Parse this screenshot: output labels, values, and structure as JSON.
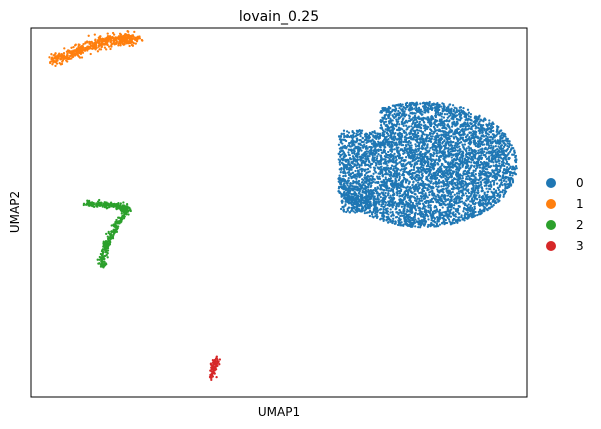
{
  "chart_data": {
    "type": "scatter",
    "title": "lovain_0.25",
    "xlabel": "UMAP1",
    "ylabel": "UMAP2",
    "xlim": [
      0,
      100
    ],
    "ylim": [
      0,
      100
    ],
    "grid": false,
    "ticks": false,
    "legend_placement": "right-outside",
    "series": [
      {
        "name": "0",
        "color": "#1f77b4",
        "cluster": {
          "center": [
            79.0,
            63.0
          ],
          "spread": [
            19.0,
            17.0
          ],
          "count": 5200,
          "shape": "blob"
        }
      },
      {
        "name": "1",
        "color": "#ff7f0e",
        "cluster": {
          "path": [
            [
              4.5,
              91.5
            ],
            [
              8.0,
              93.0
            ],
            [
              12.0,
              95.0
            ],
            [
              16.0,
              96.8
            ],
            [
              19.0,
              97.2
            ],
            [
              21.0,
              96.8
            ]
          ],
          "width": 0.8,
          "count": 520,
          "shape": "curve"
        }
      },
      {
        "name": "2",
        "color": "#2ca02c",
        "path_a": [
          [
            11.0,
            52.5
          ],
          [
            15.0,
            52.2
          ],
          [
            18.5,
            51.5
          ],
          [
            19.2,
            50.5
          ]
        ],
        "path_b": [
          [
            19.2,
            50.5
          ],
          [
            17.0,
            46.0
          ],
          [
            15.5,
            42.0
          ],
          [
            14.5,
            38.0
          ],
          [
            14.3,
            35.5
          ]
        ],
        "cluster": {
          "width": 0.7,
          "count": 440,
          "shape": "curve"
        }
      },
      {
        "name": "3",
        "color": "#d62728",
        "cluster": {
          "path": [
            [
              37.3,
              10.5
            ],
            [
              36.8,
              8.0
            ],
            [
              36.3,
              5.0
            ]
          ],
          "width": 0.35,
          "count": 70,
          "shape": "curve"
        }
      }
    ]
  }
}
